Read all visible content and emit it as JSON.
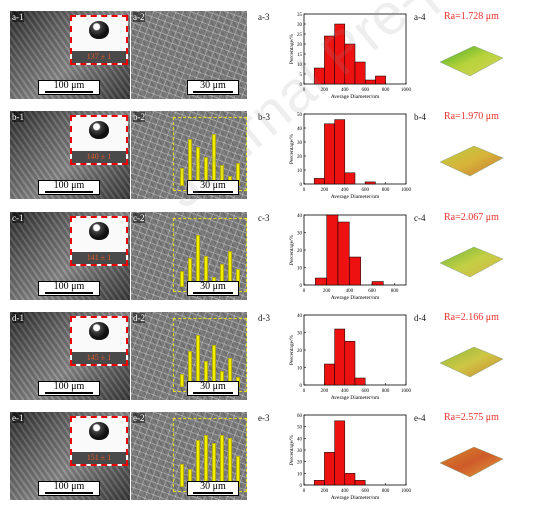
{
  "rows": [
    {
      "id": "a",
      "labels": {
        "sem1": "a-1",
        "sem2": "a-2",
        "hist": "a-3",
        "surf": "a-4"
      },
      "contact_angle": "137 ± 1",
      "scalebar_sem1": "100 μm",
      "scalebar_sem2": "30 μm",
      "roughness": "Ra=1.728 μm",
      "has_inset_histogram": false,
      "inset_bars": []
    },
    {
      "id": "b",
      "labels": {
        "sem1": "b-1",
        "sem2": "b-2",
        "hist": "b-3",
        "surf": "b-4"
      },
      "contact_angle": "140 ± 1",
      "scalebar_sem1": "100 μm",
      "scalebar_sem2": "30 μm",
      "roughness": "Ra=1.970 μm",
      "has_inset_histogram": true,
      "inset_bars": [
        0.35,
        0.9,
        0.75,
        0.55,
        1.0,
        0.4,
        0.2,
        0.45
      ]
    },
    {
      "id": "c",
      "labels": {
        "sem1": "c-1",
        "sem2": "c-2",
        "hist": "c-3",
        "surf": "c-4"
      },
      "contact_angle": "141 ± 1",
      "scalebar_sem1": "100 μm",
      "scalebar_sem2": "30 μm",
      "roughness": "Ra=2.067 μm",
      "has_inset_histogram": true,
      "inset_bars": [
        0.3,
        0.55,
        1.0,
        0.6,
        0.2,
        0.45,
        0.7,
        0.35
      ]
    },
    {
      "id": "d",
      "labels": {
        "sem1": "d-1",
        "sem2": "d-2",
        "hist": "d-3",
        "surf": "d-4"
      },
      "contact_angle": "145 ± 1",
      "scalebar_sem1": "100 μm",
      "scalebar_sem2": "30 μm",
      "roughness": "Ra=2.166 μm",
      "has_inset_histogram": true,
      "inset_bars": [
        0.25,
        0.7,
        1.0,
        0.5,
        0.8,
        0.3,
        0.55,
        0.2
      ]
    },
    {
      "id": "e",
      "labels": {
        "sem1": "e-1",
        "sem2": "e-2",
        "hist": "e-3",
        "surf": "e-4"
      },
      "contact_angle": "151 ± 1",
      "scalebar_sem1": "100 μm",
      "scalebar_sem2": "30 μm",
      "roughness": "Ra=2.575 μm",
      "has_inset_histogram": true,
      "inset_bars": [
        0.45,
        0.35,
        0.9,
        1.0,
        0.85,
        1.0,
        0.95,
        0.6
      ]
    }
  ],
  "surface_colors": {
    "a": [
      "#3fa72a",
      "#b7d33a",
      "#d8d25a"
    ],
    "b": [
      "#b6cf3f",
      "#d7b43a",
      "#c9762e"
    ],
    "c": [
      "#6ab53a",
      "#c3cf44",
      "#d9b54a"
    ],
    "d": [
      "#88bb3a",
      "#cfc645",
      "#c9852f"
    ],
    "e": [
      "#d58a2c",
      "#cf5a2a",
      "#e0a33a"
    ]
  },
  "bar_color": "#ee1111",
  "watermark": "Journal Pre-proof",
  "chart_data": [
    {
      "type": "bar",
      "xlabel": "Average Diameter/nm",
      "ylabel": "Percentage/%",
      "xlim": [
        0,
        1000
      ],
      "xticks": [
        0,
        200,
        400,
        600,
        800,
        1000
      ],
      "ylim": [
        0,
        35
      ],
      "yticks": [
        0,
        5,
        10,
        15,
        20,
        25,
        30,
        35
      ],
      "bin_width": 100,
      "x": [
        150,
        250,
        350,
        450,
        550,
        650,
        750
      ],
      "values": [
        8,
        24,
        30,
        20,
        11,
        2,
        4
      ]
    },
    {
      "type": "bar",
      "xlabel": "Average Diameter/nm",
      "ylabel": "Percentage/%",
      "xlim": [
        0,
        1000
      ],
      "xticks": [
        0,
        200,
        400,
        600,
        800,
        1000
      ],
      "ylim": [
        0,
        50
      ],
      "yticks": [
        0,
        10,
        20,
        30,
        40,
        50
      ],
      "bin_width": 100,
      "x": [
        150,
        250,
        350,
        450,
        650
      ],
      "values": [
        4,
        43,
        46,
        8,
        1.5
      ]
    },
    {
      "type": "bar",
      "xlabel": "Average Diameter/nm",
      "ylabel": "Percentage/%",
      "xlim": [
        0,
        900
      ],
      "xticks": [
        0,
        200,
        400,
        600,
        800
      ],
      "ylim": [
        0,
        40
      ],
      "yticks": [
        0,
        10,
        20,
        30,
        40
      ],
      "bin_width": 100,
      "x": [
        150,
        250,
        350,
        450,
        650
      ],
      "values": [
        4,
        40,
        36,
        16,
        2
      ]
    },
    {
      "type": "bar",
      "xlabel": "Average Diameter/nm",
      "ylabel": "Percentage/%",
      "xlim": [
        0,
        1000
      ],
      "xticks": [
        0,
        200,
        400,
        600,
        800,
        1000
      ],
      "ylim": [
        0,
        40
      ],
      "yticks": [
        0,
        10,
        20,
        30,
        40
      ],
      "bin_width": 100,
      "x": [
        250,
        350,
        450,
        550
      ],
      "values": [
        12,
        32,
        25,
        4
      ]
    },
    {
      "type": "bar",
      "xlabel": "Average Diameter/nm",
      "ylabel": "Percentage/%",
      "xlim": [
        0,
        1000
      ],
      "xticks": [
        0,
        200,
        400,
        600,
        800,
        1000
      ],
      "ylim": [
        0,
        60
      ],
      "yticks": [
        0,
        10,
        20,
        30,
        40,
        50,
        60
      ],
      "bin_width": 100,
      "x": [
        150,
        250,
        350,
        450,
        550
      ],
      "values": [
        4,
        28,
        55,
        10,
        4
      ]
    }
  ]
}
